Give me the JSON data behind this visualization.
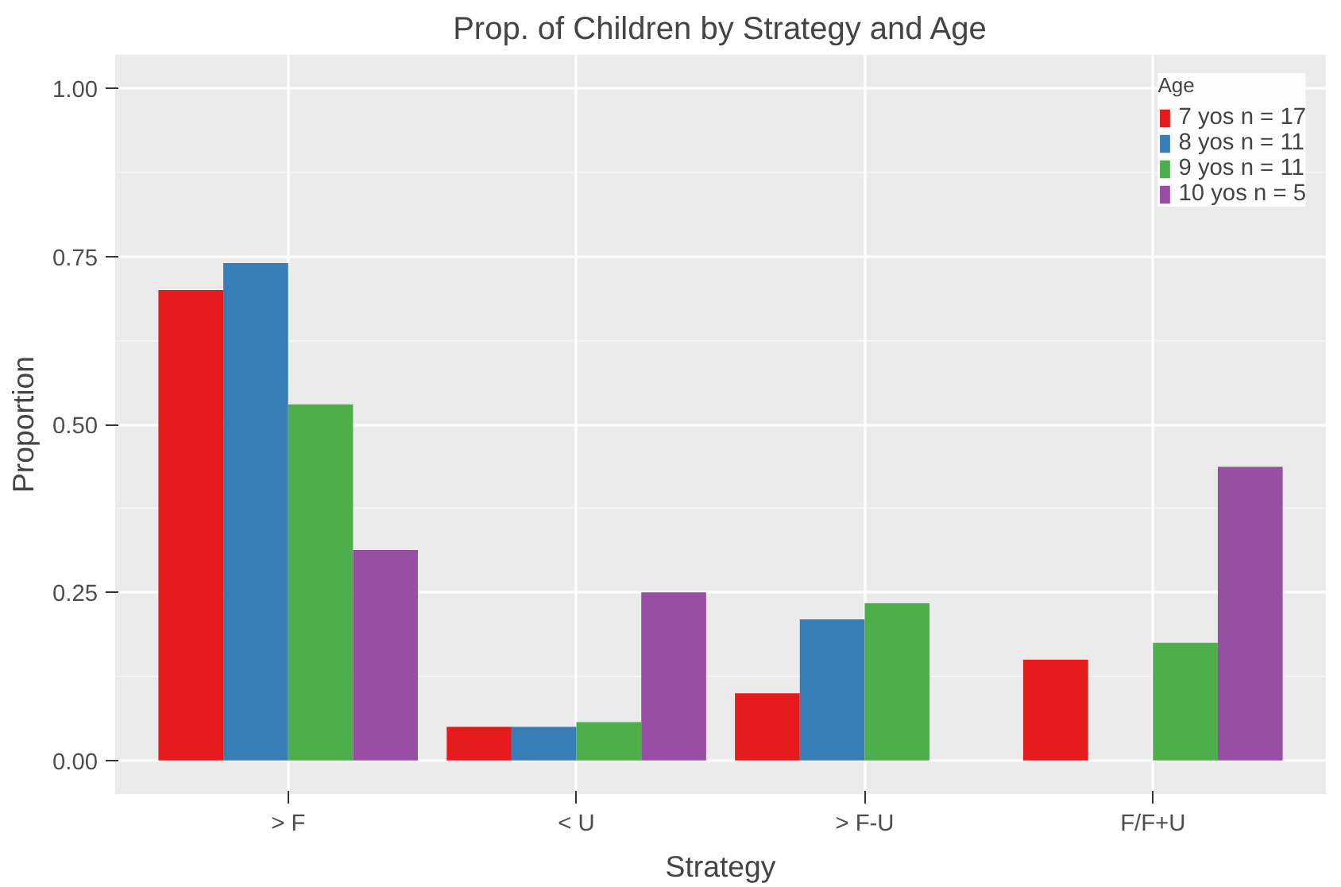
{
  "chart_data": {
    "type": "bar",
    "title": "Prop. of Children by Strategy and Age",
    "xlabel": "Strategy",
    "ylabel": "Proportion",
    "legend_title": "Age",
    "categories": [
      "> F",
      "< U",
      "> F-U",
      "F/F+U"
    ],
    "series": [
      {
        "name": "7 yos n = 17",
        "color": "#e41a1c",
        "values": [
          0.7,
          0.05,
          0.1,
          0.15
        ]
      },
      {
        "name": "8 yos n = 11",
        "color": "#377eb8",
        "values": [
          0.74,
          0.05,
          0.21,
          null
        ]
      },
      {
        "name": "9 yos n = 11",
        "color": "#4daf4a",
        "values": [
          0.53,
          0.057,
          0.234,
          0.175
        ]
      },
      {
        "name": "10 yos n = 5",
        "color": "#984ea3",
        "values": [
          0.313,
          0.25,
          null,
          0.437
        ]
      }
    ],
    "ylim": [
      -0.05,
      1.05
    ],
    "yticks": [
      {
        "value": 0,
        "label": "0.00"
      },
      {
        "value": 0.25,
        "label": "0.25"
      },
      {
        "value": 0.5,
        "label": "0.50"
      },
      {
        "value": 0.75,
        "label": "0.75"
      },
      {
        "value": 1,
        "label": "1.00"
      }
    ],
    "grid": true,
    "legend": "top right"
  }
}
